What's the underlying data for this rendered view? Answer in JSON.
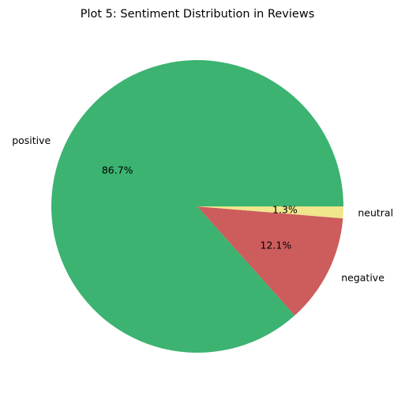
{
  "chart_data": {
    "type": "pie",
    "title": "Plot 5: Sentiment Distribution in Reviews",
    "slices": [
      {
        "label": "positive",
        "value": 86.7,
        "pct_label": "86.7%",
        "color": "#3cb371"
      },
      {
        "label": "negative",
        "value": 12.1,
        "pct_label": "12.1%",
        "color": "#cd5c5c"
      },
      {
        "label": "neutral",
        "value": 1.3,
        "pct_label": "1.3%",
        "color": "#f0e68c"
      }
    ],
    "start_angle_deg": 0,
    "direction": "counterclockwise",
    "legend": "none"
  }
}
